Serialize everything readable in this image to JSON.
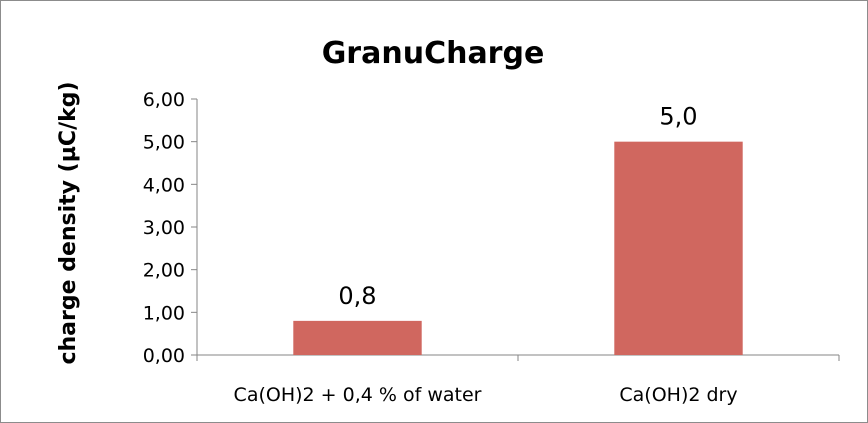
{
  "chart_data": {
    "type": "bar",
    "title": "GranuCharge",
    "xlabel": "",
    "ylabel": "charge density (µC/kg)",
    "categories": [
      "Ca(OH)2 + 0,4 % of water",
      "Ca(OH)2 dry"
    ],
    "values": [
      0.8,
      5.0
    ],
    "data_labels": [
      "0,8",
      "5,0"
    ],
    "ylim": [
      0,
      6
    ],
    "yticks": [
      "0,00",
      "1,00",
      "2,00",
      "3,00",
      "4,00",
      "5,00",
      "6,00"
    ],
    "grid": false,
    "legend": "none",
    "bar_color": "#d0675f"
  }
}
